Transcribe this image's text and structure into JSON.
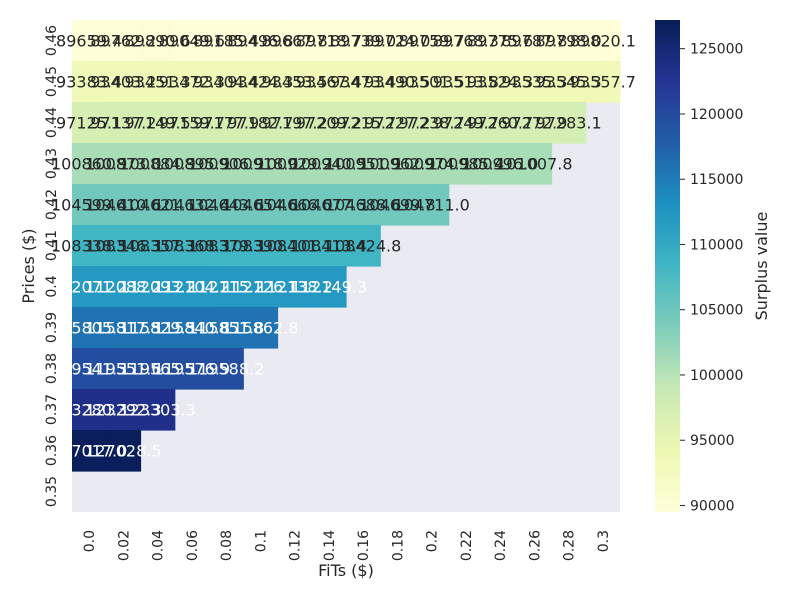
{
  "chart_data": {
    "type": "heatmap",
    "xlabel": "FiTs ($)",
    "ylabel": "Prices ($)",
    "x_ticks": [
      "0.0",
      "0.02",
      "0.04",
      "0.06",
      "0.08",
      "0.1",
      "0.12",
      "0.14",
      "0.16",
      "0.18",
      "0.2",
      "0.22",
      "0.24",
      "0.26",
      "0.28",
      "0.3"
    ],
    "y_ticks": [
      "0.46",
      "0.45",
      "0.44",
      "0.43",
      "0.42",
      "0.41",
      "0.4",
      "0.39",
      "0.38",
      "0.37",
      "0.36",
      "0.35"
    ],
    "colorbar": {
      "label": "Surplus value",
      "min": 89500,
      "max": 127200,
      "ticks": [
        "90000",
        "95000",
        "100000",
        "105000",
        "110000",
        "115000",
        "120000",
        "125000"
      ],
      "colormap": "YlGnBu",
      "stops": [
        "#ffffd9",
        "#edf8b1",
        "#c7e9b4",
        "#7fcdbb",
        "#41b6c4",
        "#1d91c0",
        "#225ea8",
        "#253494",
        "#081d58"
      ]
    },
    "missing_color": "#eaeaf2",
    "cell_labels": [
      [
        "89659.4",
        "89762.2",
        "89890.6",
        "89049.6",
        "89185.4",
        "89496.8",
        "89667.8",
        "89718.7",
        "89739.0",
        "89724.0",
        "89759.7",
        "89768.3",
        "89775.6",
        "89787.8",
        "89798.0",
        "89820.1"
      ],
      [
        "93383.4",
        "93403.2",
        "93451.3",
        "93472.3",
        "93404.4",
        "93424.3",
        "93453.5",
        "93467.4",
        "93473.4",
        "93490.5",
        "93501.5",
        "93513.8",
        "93524.3",
        "93535.3",
        "93545.3",
        "93557.7"
      ],
      [
        "97125.1",
        "97137.2",
        "97149.5",
        "97159.7",
        "97177.9",
        "97182.7",
        "97197.2",
        "97209.2",
        "97215.7",
        "97227.2",
        "97238.7",
        "97249.7",
        "97260.7",
        "97272.9",
        "97283.1",
        ""
      ],
      [
        "100860.9",
        "100873.0",
        "100884.9",
        "100895.9",
        "100906.9",
        "100918.0",
        "100929.2",
        "100940.5",
        "100951.9",
        "100962.9",
        "100974.9",
        "100985.4",
        "100996.0",
        "101007.8",
        "",
        ""
      ],
      [
        "104599.4",
        "104610.6",
        "104621.1",
        "104632.4",
        "104643.6",
        "104654.6",
        "104666.0",
        "104677.3",
        "104688.6",
        "104699.8",
        "104711.0",
        "",
        "",
        "",
        "",
        ""
      ],
      [
        "108338.5",
        "108346.3",
        "108357.3",
        "108368.3",
        "108379.3",
        "108390.1",
        "108401.1",
        "108413.4",
        "108424.8",
        "",
        "",
        "",
        "",
        "",
        "",
        ""
      ],
      [
        "112071.2",
        "112088.2",
        "112093.2",
        "112104.2",
        "112115.2",
        "112126.1",
        "112138.2",
        "112149.3",
        "",
        "",
        "",
        "",
        "",
        "",
        "",
        ""
      ],
      [
        "115805.3",
        "115817.5",
        "115829.5",
        "115840.8",
        "115851.8",
        "115862.8",
        "",
        "",
        "",
        "",
        "",
        "",
        "",
        "",
        "",
        ""
      ],
      [
        "119541.3",
        "119551.6",
        "119565.5",
        "119576.9",
        "119588.2",
        "",
        "",
        "",
        "",
        "",
        "",
        "",
        "",
        "",
        "",
        ""
      ],
      [
        "123280.3",
        "123292.3",
        "123303.3",
        "",
        "",
        "",
        "",
        "",
        "",
        "",
        "",
        "",
        "",
        "",
        "",
        ""
      ],
      [
        "127017.0",
        "127028.5",
        "",
        "",
        "",
        "",
        "",
        "",
        "",
        "",
        "",
        "",
        "",
        "",
        "",
        ""
      ],
      [
        "",
        "",
        "",
        "",
        "",
        "",
        "",
        "",
        "",
        "",
        "",
        "",
        "",
        "",
        "",
        ""
      ]
    ]
  }
}
